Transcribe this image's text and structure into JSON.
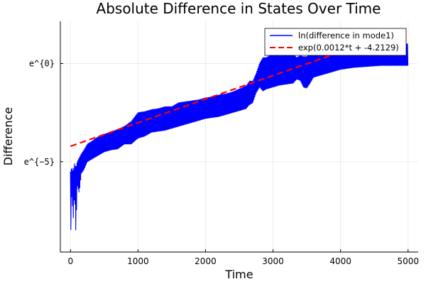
{
  "chart_data": {
    "type": "line",
    "title": "Absolute Difference in States Over Time",
    "xlabel": "Time",
    "ylabel": "Difference",
    "x_ticks": [
      0,
      1000,
      2000,
      3000,
      4000,
      5000
    ],
    "x_tick_labels": [
      "0",
      "1000",
      "2000",
      "3000",
      "4000",
      "5000"
    ],
    "y_ticks": [
      -5,
      0
    ],
    "y_tick_labels": [
      "e^{−5}",
      "e^{0}"
    ],
    "xlim": [
      -150,
      5150
    ],
    "ylim": [
      -9.6,
      2.15
    ],
    "grid": true,
    "legend_position": "top-right",
    "series": [
      {
        "name": "ln(difference in mode1)",
        "color": "#0000ff",
        "style": "solid",
        "envelope": {
          "x": [
            0,
            20,
            40,
            60,
            80,
            100,
            130,
            160,
            200,
            250,
            300,
            400,
            500,
            600,
            700,
            800,
            900,
            1000,
            1100,
            1200,
            1300,
            1400,
            1500,
            1600,
            1700,
            1800,
            1900,
            2000,
            2100,
            2200,
            2300,
            2400,
            2500,
            2600,
            2650,
            2700,
            2750,
            2800,
            2850,
            2900,
            3000,
            3100,
            3200,
            3300,
            3350,
            3400,
            3450,
            3500,
            3550,
            3600,
            3700,
            3800,
            3900,
            4000,
            4200,
            4400,
            4600,
            4800,
            5000
          ],
          "upper": [
            -5.5,
            -5.3,
            -5.5,
            -5.1,
            -5.3,
            -5.0,
            -4.8,
            -4.6,
            -4.4,
            -4.1,
            -4.0,
            -3.75,
            -3.6,
            -3.5,
            -3.35,
            -3.2,
            -2.95,
            -2.5,
            -2.45,
            -2.35,
            -2.3,
            -2.2,
            -2.2,
            -2.0,
            -1.95,
            -1.9,
            -1.85,
            -1.75,
            -1.7,
            -1.6,
            -1.55,
            -1.45,
            -1.3,
            -1.15,
            -0.9,
            -0.9,
            -0.5,
            0.0,
            0.3,
            0.3,
            0.5,
            0.6,
            0.6,
            0.5,
            0.3,
            0.4,
            0.35,
            0.35,
            0.5,
            0.5,
            0.6,
            0.8,
            0.8,
            0.9,
            0.9,
            0.95,
            0.95,
            1.0,
            1.0
          ],
          "lower": [
            -9.3,
            -6.5,
            -8.0,
            -6.5,
            -8.7,
            -6.2,
            -6.6,
            -5.6,
            -5.4,
            -5.0,
            -4.9,
            -4.7,
            -4.5,
            -4.4,
            -4.35,
            -4.1,
            -4.1,
            -3.8,
            -3.7,
            -3.5,
            -3.45,
            -3.4,
            -3.3,
            -3.2,
            -3.1,
            -3.0,
            -2.9,
            -2.8,
            -2.75,
            -2.7,
            -2.6,
            -2.5,
            -2.4,
            -2.3,
            -2.1,
            -2.0,
            -1.5,
            -1.2,
            -1.4,
            -1.3,
            -1.2,
            -1.1,
            -1.05,
            -1.0,
            -0.8,
            -0.85,
            -1.2,
            -1.25,
            -1.0,
            -0.7,
            -0.6,
            -0.5,
            -0.4,
            -0.3,
            -0.2,
            -0.15,
            -0.1,
            -0.1,
            -0.1
          ]
        }
      },
      {
        "name": "exp(0.0012*t + -4.2129)",
        "color": "#ff0000",
        "style": "dashed",
        "fit": {
          "slope": 0.0012,
          "intercept": -4.2129
        },
        "x": [
          0,
          5000
        ]
      }
    ]
  }
}
